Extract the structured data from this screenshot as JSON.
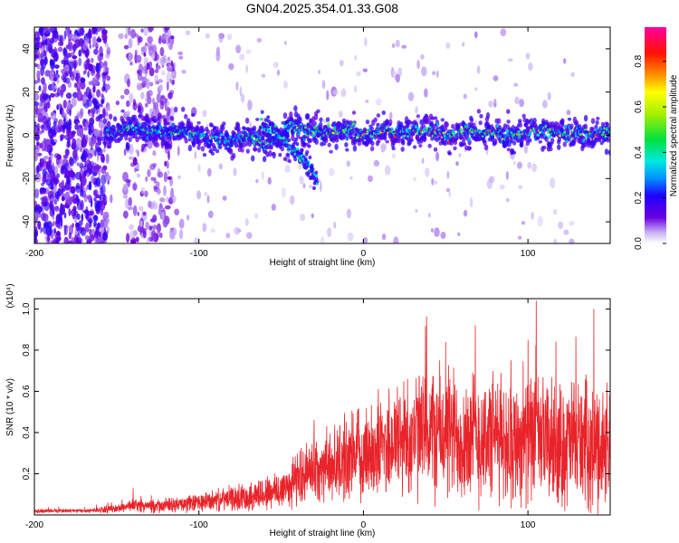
{
  "title": "GN04.2025.354.01.33.G08",
  "chart_data": [
    {
      "type": "heatmap",
      "xlabel": "Height of straight line (km)",
      "ylabel": "Frequency (Hz)",
      "xlim": [
        -200,
        150
      ],
      "ylim": [
        -50,
        50
      ],
      "xticks": [
        -200,
        -100,
        0,
        100
      ],
      "yticks": [
        -40,
        -20,
        0,
        20,
        40
      ],
      "colorbar": {
        "label": "Normalized spectral amplitude",
        "range": [
          0,
          0.95
        ],
        "ticks": [
          0.0,
          0.2,
          0.4,
          0.6,
          0.8
        ]
      },
      "ridge": {
        "x": [
          -155,
          -140,
          -120,
          -100,
          -90,
          -80,
          -70,
          -60,
          -50,
          -45,
          -40,
          -35,
          -30,
          -20,
          -10,
          0,
          10,
          20,
          30,
          40,
          50,
          60,
          70,
          80,
          90,
          100,
          110,
          120,
          130,
          140,
          150
        ],
        "y": [
          2,
          3,
          2,
          1,
          -2,
          -3,
          0,
          -4,
          -1,
          5,
          3,
          2,
          3,
          2,
          2,
          1,
          2,
          1,
          1,
          2,
          0,
          1,
          2,
          1,
          0,
          1,
          2,
          1,
          1,
          0,
          2
        ]
      },
      "branch": {
        "x": [
          -62,
          -55,
          -48,
          -42,
          -38,
          -35,
          -32,
          -28
        ],
        "y": [
          4,
          2,
          -3,
          -7,
          -10,
          -13,
          -16,
          -20
        ]
      }
    },
    {
      "type": "line",
      "xlabel": "Height of straight line (km)",
      "ylabel": "SNR (10 * v/v)",
      "yunit": "(x10⁴)",
      "xlim": [
        -200,
        150
      ],
      "ylim": [
        0,
        1.05
      ],
      "xticks": [
        -200,
        -100,
        0,
        100
      ],
      "yticks": [
        0.2,
        0.4,
        0.6,
        0.8,
        1.0
      ],
      "color": "#e8242a",
      "envelope": {
        "x": [
          -200,
          -170,
          -150,
          -140,
          -130,
          -110,
          -90,
          -70,
          -50,
          -40,
          -30,
          -20,
          -10,
          0,
          10,
          20,
          30,
          40,
          50,
          60,
          70,
          80,
          90,
          100,
          110,
          120,
          130,
          140,
          150
        ],
        "mean": [
          0.02,
          0.02,
          0.03,
          0.05,
          0.04,
          0.05,
          0.07,
          0.09,
          0.12,
          0.18,
          0.22,
          0.24,
          0.27,
          0.3,
          0.33,
          0.37,
          0.38,
          0.4,
          0.4,
          0.38,
          0.37,
          0.38,
          0.36,
          0.37,
          0.36,
          0.33,
          0.36,
          0.33,
          0.35
        ],
        "spread": [
          0.01,
          0.01,
          0.02,
          0.03,
          0.03,
          0.04,
          0.05,
          0.07,
          0.1,
          0.13,
          0.15,
          0.17,
          0.2,
          0.22,
          0.25,
          0.28,
          0.3,
          0.32,
          0.33,
          0.32,
          0.32,
          0.3,
          0.3,
          0.3,
          0.3,
          0.3,
          0.3,
          0.3,
          0.3
        ]
      },
      "peaks": [
        {
          "x": -140,
          "y": 0.13
        },
        {
          "x": -30,
          "y": 0.46
        },
        {
          "x": 50,
          "y": 0.84
        },
        {
          "x": 68,
          "y": 0.92
        },
        {
          "x": 100,
          "y": 0.85
        },
        {
          "x": 105,
          "y": 1.04
        },
        {
          "x": 140,
          "y": 1.0
        },
        {
          "x": 150,
          "y": 0.78
        }
      ]
    }
  ]
}
